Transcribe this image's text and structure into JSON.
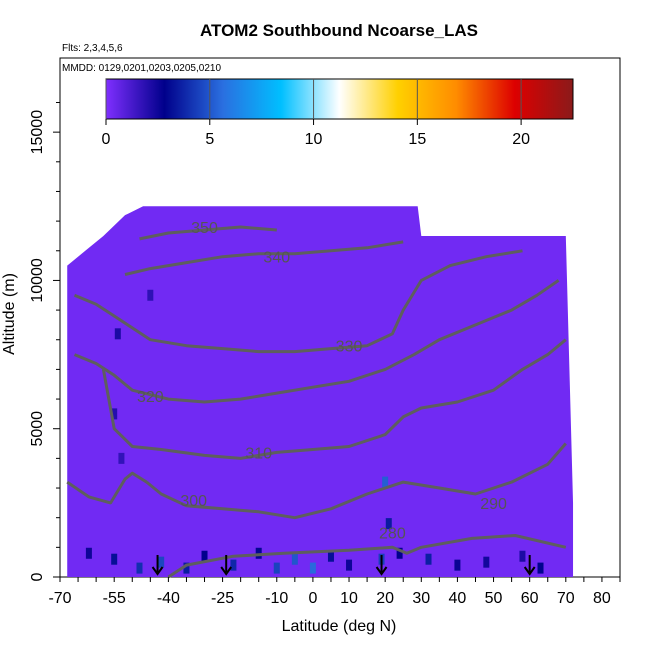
{
  "chart_data": {
    "type": "heatmap",
    "title": "ATOM2 Southbound Ncoarse_LAS",
    "flights_label": "Flts: 2,3,4,5,6",
    "dates_label": "MMDD: 0129,0201,0203,0205,0210",
    "xlabel": "Latitude (deg N)",
    "ylabel": "Altitude (m)",
    "xlim": [
      -70,
      85
    ],
    "ylim": [
      0,
      17500
    ],
    "x_ticks": [
      -70,
      -55,
      -40,
      -25,
      -10,
      0,
      10,
      20,
      30,
      40,
      50,
      60,
      70,
      80
    ],
    "y_ticks": [
      0,
      5000,
      10000,
      15000
    ],
    "colorbar": {
      "range": [
        0,
        22.5
      ],
      "ticks": [
        0,
        5,
        10,
        15,
        20
      ],
      "stops": [
        "#7f2fff",
        "#00008b",
        "#2a6fe0",
        "#00bfff",
        "#ffffff",
        "#ffd000",
        "#ff8c00",
        "#dd0000",
        "#8b1a1a"
      ]
    },
    "field_base_value": 0.3,
    "curtain_profile": [
      {
        "lat": -68,
        "top": 10500
      },
      {
        "lat": -63,
        "top": 11000
      },
      {
        "lat": -58,
        "top": 11500
      },
      {
        "lat": -52,
        "top": 12200
      },
      {
        "lat": -47,
        "top": 12500
      },
      {
        "lat": 29,
        "top": 12500
      },
      {
        "lat": 30,
        "top": 11500
      },
      {
        "lat": 70,
        "top": 11500
      },
      {
        "lat": 71,
        "top": 7000
      },
      {
        "lat": 72,
        "top": 2500
      },
      {
        "lat": 72,
        "top": 0
      }
    ],
    "enhanced_cells": [
      {
        "lat": -62,
        "alt": 800,
        "value": 2.5
      },
      {
        "lat": -55,
        "alt": 600,
        "value": 3.2
      },
      {
        "lat": -48,
        "alt": 300,
        "value": 4.0
      },
      {
        "lat": -42,
        "alt": 500,
        "value": 4.6
      },
      {
        "lat": -35,
        "alt": 300,
        "value": 3.5
      },
      {
        "lat": -30,
        "alt": 700,
        "value": 2.8
      },
      {
        "lat": -22,
        "alt": 400,
        "value": 3.8
      },
      {
        "lat": -15,
        "alt": 800,
        "value": 3.0
      },
      {
        "lat": -10,
        "alt": 300,
        "value": 4.5
      },
      {
        "lat": -5,
        "alt": 600,
        "value": 5.0
      },
      {
        "lat": 0,
        "alt": 300,
        "value": 5.5
      },
      {
        "lat": 5,
        "alt": 700,
        "value": 3.2
      },
      {
        "lat": 10,
        "alt": 400,
        "value": 2.5
      },
      {
        "lat": 19,
        "alt": 600,
        "value": 4.4
      },
      {
        "lat": 20,
        "alt": 3200,
        "value": 5.2
      },
      {
        "lat": 21,
        "alt": 1800,
        "value": 3.5
      },
      {
        "lat": 24,
        "alt": 800,
        "value": 2.8
      },
      {
        "lat": 32,
        "alt": 600,
        "value": 3.6
      },
      {
        "lat": 40,
        "alt": 400,
        "value": 2.6
      },
      {
        "lat": 48,
        "alt": 500,
        "value": 2.4
      },
      {
        "lat": 58,
        "alt": 700,
        "value": 2.2
      },
      {
        "lat": 63,
        "alt": 300,
        "value": 2.9
      },
      {
        "lat": -55,
        "alt": 5500,
        "value": 2.0
      },
      {
        "lat": -54,
        "alt": 8200,
        "value": 2.2
      },
      {
        "lat": -45,
        "alt": 9500,
        "value": 1.8
      },
      {
        "lat": -53,
        "alt": 4000,
        "value": 1.7
      }
    ],
    "contours": [
      {
        "label": "280",
        "label_at": [
          22,
          1300
        ],
        "points": [
          [
            -40,
            0
          ],
          [
            -35,
            400
          ],
          [
            -22,
            700
          ],
          [
            -8,
            800
          ],
          [
            10,
            900
          ],
          [
            22,
            1000
          ],
          [
            26,
            800
          ],
          [
            30,
            1000
          ],
          [
            44,
            1300
          ],
          [
            56,
            1400
          ],
          [
            70,
            1000
          ]
        ]
      },
      {
        "label": "290",
        "label_at": [
          50,
          2300
        ],
        "points": [
          [
            -68,
            3200
          ],
          [
            -62,
            2700
          ],
          [
            -56,
            2500
          ],
          [
            -52,
            3300
          ],
          [
            -50,
            3500
          ],
          [
            -46,
            3200
          ]
        ]
      },
      {
        "label": "300",
        "label_at": [
          -33,
          2400
        ],
        "points": [
          [
            -46,
            3200
          ],
          [
            -42,
            2800
          ],
          [
            -35,
            2400
          ],
          [
            -25,
            2300
          ],
          [
            -15,
            2200
          ],
          [
            -5,
            2000
          ],
          [
            5,
            2300
          ],
          [
            15,
            2800
          ],
          [
            25,
            3200
          ],
          [
            35,
            3000
          ],
          [
            45,
            2800
          ],
          [
            55,
            3200
          ],
          [
            65,
            3800
          ],
          [
            70,
            4500
          ]
        ]
      },
      {
        "label": "310",
        "label_at": [
          -15,
          4000
        ],
        "points": [
          [
            -58,
            7000
          ],
          [
            -55,
            5000
          ],
          [
            -50,
            4400
          ],
          [
            -42,
            4300
          ],
          [
            -30,
            4100
          ],
          [
            -20,
            4000
          ],
          [
            -10,
            4200
          ],
          [
            0,
            4300
          ],
          [
            10,
            4400
          ],
          [
            20,
            4800
          ],
          [
            25,
            5400
          ],
          [
            30,
            5700
          ],
          [
            40,
            5900
          ],
          [
            50,
            6300
          ],
          [
            58,
            7000
          ],
          [
            65,
            7500
          ],
          [
            70,
            8000
          ]
        ]
      },
      {
        "label": "320",
        "label_at": [
          -45,
          5900
        ],
        "points": [
          [
            -66,
            7500
          ],
          [
            -60,
            7200
          ],
          [
            -55,
            6800
          ],
          [
            -50,
            6300
          ],
          [
            -40,
            6000
          ],
          [
            -30,
            5900
          ],
          [
            -20,
            6000
          ],
          [
            -10,
            6200
          ],
          [
            0,
            6400
          ],
          [
            10,
            6600
          ],
          [
            20,
            7000
          ],
          [
            28,
            7500
          ],
          [
            35,
            8000
          ],
          [
            45,
            8500
          ],
          [
            55,
            9000
          ],
          [
            62,
            9500
          ],
          [
            68,
            10000
          ]
        ]
      },
      {
        "label": "330",
        "label_at": [
          10,
          7600
        ],
        "points": [
          [
            -66,
            9500
          ],
          [
            -60,
            9200
          ],
          [
            -55,
            8800
          ],
          [
            -50,
            8400
          ],
          [
            -45,
            8000
          ],
          [
            -35,
            7800
          ],
          [
            -25,
            7700
          ],
          [
            -15,
            7600
          ],
          [
            -5,
            7600
          ],
          [
            5,
            7700
          ],
          [
            15,
            7800
          ],
          [
            22,
            8200
          ],
          [
            25,
            9000
          ],
          [
            30,
            10000
          ],
          [
            38,
            10500
          ],
          [
            48,
            10800
          ],
          [
            58,
            11000
          ]
        ]
      },
      {
        "label": "340",
        "label_at": [
          -10,
          10600
        ],
        "points": [
          [
            -52,
            10200
          ],
          [
            -45,
            10400
          ],
          [
            -35,
            10600
          ],
          [
            -25,
            10800
          ],
          [
            -15,
            10900
          ],
          [
            -5,
            10900
          ],
          [
            5,
            11000
          ],
          [
            15,
            11100
          ],
          [
            25,
            11300
          ]
        ]
      },
      {
        "label": "350",
        "label_at": [
          -30,
          11600
        ],
        "points": [
          [
            -48,
            11400
          ],
          [
            -40,
            11600
          ],
          [
            -30,
            11700
          ],
          [
            -20,
            11800
          ],
          [
            -10,
            11700
          ]
        ]
      }
    ],
    "arrows_lat": [
      -43,
      -24,
      19,
      60
    ]
  }
}
